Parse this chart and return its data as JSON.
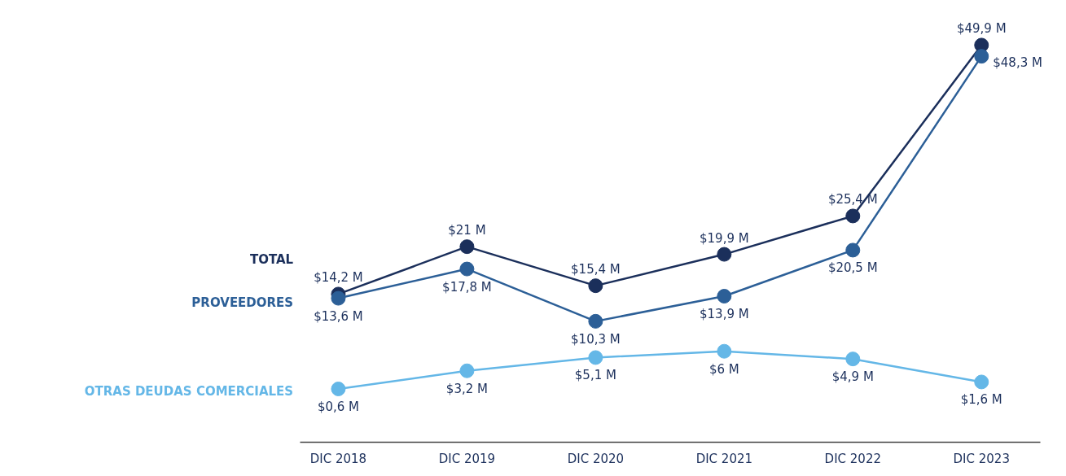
{
  "chart_data": {
    "type": "line",
    "categories": [
      "DIC 2018",
      "DIC 2019",
      "DIC 2020",
      "DIC 2021",
      "DIC 2022",
      "DIC 2023"
    ],
    "marker": "circle",
    "line_style": "solid",
    "grid": false,
    "tick_labels": "x",
    "series": [
      {
        "name": "TOTAL",
        "color": "#1b2f5b",
        "values": [
          14.2,
          21,
          15.4,
          19.9,
          25.4,
          49.9
        ],
        "value_labels": [
          "$14,2 M",
          "$21 M",
          "$15,4 M",
          "$19,9 M",
          "$25,4 M",
          "$49,9 M"
        ]
      },
      {
        "name": "PROVEEDORES",
        "color": "#2c5f97",
        "values": [
          13.6,
          17.8,
          10.3,
          13.9,
          20.5,
          48.3
        ],
        "value_labels": [
          "$13,6 M",
          "$17,8 M",
          "$10,3 M",
          "$13,9 M",
          "$20,5 M",
          "$48,3 M"
        ]
      },
      {
        "name": "OTRAS DEUDAS COMERCIALES",
        "color": "#64b7e7",
        "values": [
          0.6,
          3.2,
          5.1,
          6,
          4.9,
          1.6
        ],
        "value_labels": [
          "$0,6 M",
          "$3,2 M",
          "$5,1 M",
          "$6 M",
          "$4,9 M",
          "$1,6 M"
        ]
      }
    ]
  }
}
